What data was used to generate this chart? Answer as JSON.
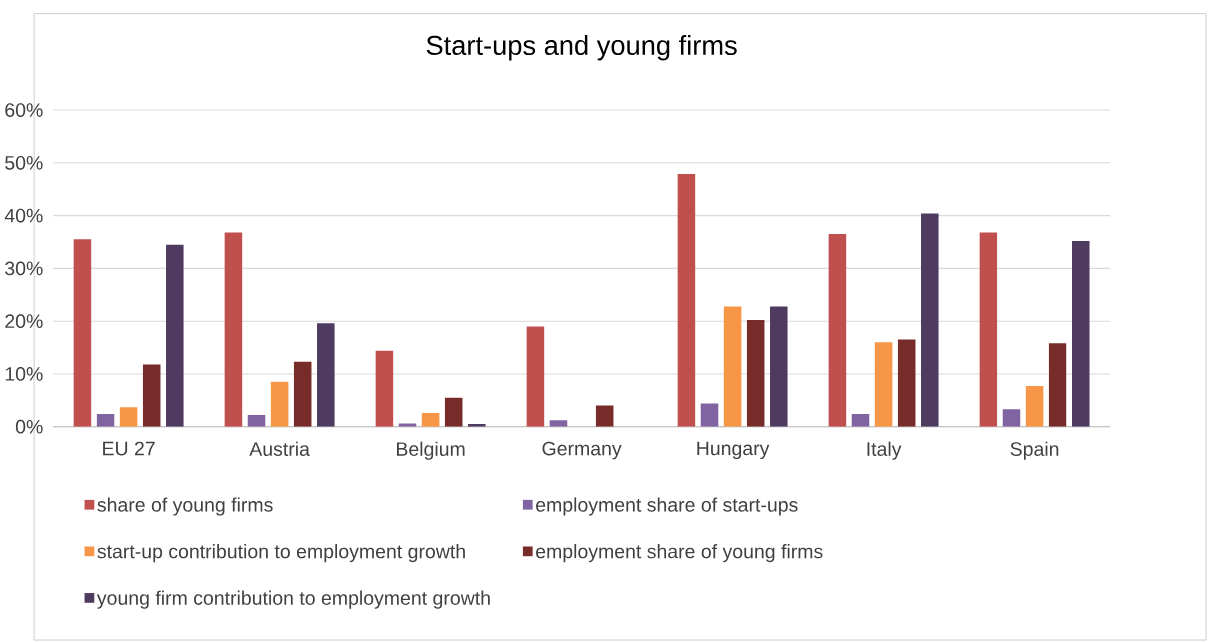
{
  "chart_data": {
    "type": "bar",
    "title": "Start-ups and young firms",
    "categories": [
      "EU 27",
      "Austria",
      "Belgium",
      "Germany",
      "Hungary",
      "Italy",
      "Spain"
    ],
    "series": [
      {
        "name": "share of young firms",
        "color": "#c0504d",
        "values": [
          35.5,
          36.8,
          14.4,
          19.0,
          47.9,
          36.5,
          36.8
        ]
      },
      {
        "name": "employment share of start-ups",
        "color": "#8064a2",
        "values": [
          2.4,
          2.2,
          0.6,
          1.2,
          4.4,
          2.4,
          3.3
        ]
      },
      {
        "name": "start-up contribution to employment growth",
        "color": "#f79646",
        "values": [
          3.7,
          8.5,
          2.6,
          null,
          22.8,
          16.0,
          7.7
        ]
      },
      {
        "name": "employment share of young firms",
        "color": "#772c2a",
        "values": [
          11.8,
          12.3,
          5.5,
          4.0,
          20.2,
          16.5,
          15.8
        ]
      },
      {
        "name": "young firm contribution to employment growth",
        "color": "#4f3a60",
        "values": [
          34.5,
          19.6,
          0.5,
          null,
          22.8,
          40.4,
          35.2
        ]
      }
    ],
    "ylim": [
      0,
      60
    ],
    "yticks": [
      {
        "value": 0,
        "label": "0%"
      },
      {
        "value": 10,
        "label": "10%"
      },
      {
        "value": 20,
        "label": "20%"
      },
      {
        "value": 30,
        "label": "30%"
      },
      {
        "value": 40,
        "label": "40%"
      },
      {
        "value": 50,
        "label": "50%"
      },
      {
        "value": 60,
        "label": "60%"
      }
    ],
    "grid": "y",
    "legend": "bottom"
  }
}
